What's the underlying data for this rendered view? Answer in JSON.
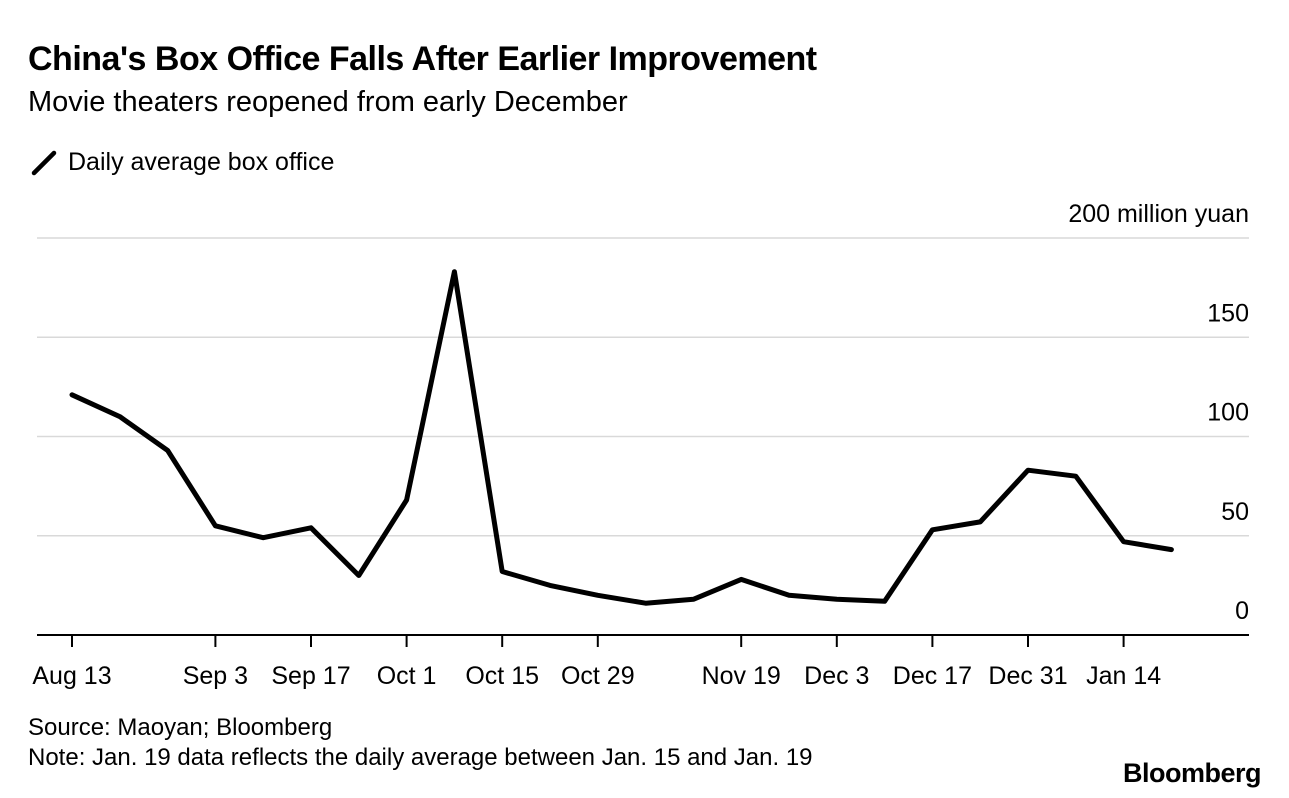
{
  "title": "China's Box Office Falls After Earlier Improvement",
  "subtitle": "Movie theaters reopened from early December",
  "legend_label": "Daily average box office",
  "source": "Source: Maoyan; Bloomberg",
  "note": "Note: Jan. 19 data reflects the daily average between Jan. 15 and Jan. 19",
  "brand": "Bloomberg",
  "chart_data": {
    "type": "line",
    "title": "China's Box Office Falls After Earlier Improvement",
    "subtitle": "Movie theaters reopened from early December",
    "xlabel": "",
    "ylabel": "200 million yuan",
    "ylim": [
      0,
      200
    ],
    "yticks": [
      0,
      50,
      100,
      150
    ],
    "ytick_labels": [
      "0",
      "50",
      "100",
      "150"
    ],
    "y_unit_label": "200 million yuan",
    "grid": true,
    "x_tick_labels": [
      {
        "label": "Aug 13",
        "index": 0
      },
      {
        "label": "Sep 3",
        "index": 3
      },
      {
        "label": "Sep 17",
        "index": 5
      },
      {
        "label": "Oct 1",
        "index": 7
      },
      {
        "label": "Oct 15",
        "index": 9
      },
      {
        "label": "Oct 29",
        "index": 11
      },
      {
        "label": "Nov 19",
        "index": 14
      },
      {
        "label": "Dec 3",
        "index": 16
      },
      {
        "label": "Dec 17",
        "index": 18
      },
      {
        "label": "Dec 31",
        "index": 20
      },
      {
        "label": "Jan 14",
        "index": 22
      }
    ],
    "series": [
      {
        "name": "Daily average box office",
        "color": "#000000",
        "values": [
          121,
          110,
          93,
          55,
          49,
          54,
          30,
          68,
          183,
          32,
          25,
          20,
          16,
          18,
          28,
          20,
          18,
          17,
          53,
          57,
          83,
          80,
          47,
          43
        ]
      }
    ]
  }
}
